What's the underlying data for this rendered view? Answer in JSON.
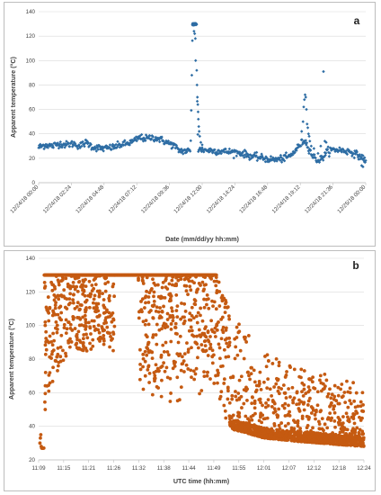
{
  "chart_data": [
    {
      "panel": "a",
      "type": "scatter",
      "color": "#2e6da4",
      "marker": "diamond",
      "xlabel": "Date (mm/dd/yy hh:mm)",
      "ylabel": "Apparent temperature (°C)",
      "ylim": [
        0,
        140
      ],
      "yticks": [
        0,
        20,
        40,
        60,
        80,
        100,
        120,
        140
      ],
      "grid": "horizontal",
      "xlim_hours": [
        0,
        24
      ],
      "xtick_labels": [
        "12/24/18 00:00",
        "12/24/18 02:24",
        "12/24/18 04:48",
        "12/24/18 07:12",
        "12/24/18 09:36",
        "12/24/18 12:00",
        "12/24/18 14:24",
        "12/24/18 16:48",
        "12/24/18 19:12",
        "12/24/18 21:36",
        "12/25/18 00:00"
      ],
      "profile": [
        [
          0,
          29
        ],
        [
          0.5,
          31
        ],
        [
          1,
          30
        ],
        [
          1.5,
          32
        ],
        [
          2,
          31
        ],
        [
          2.6,
          32
        ],
        [
          3,
          30
        ],
        [
          3.5,
          33
        ],
        [
          4,
          29
        ],
        [
          4.8,
          28
        ],
        [
          5.5,
          29
        ],
        [
          6,
          31
        ],
        [
          6.5,
          32
        ],
        [
          7,
          34
        ],
        [
          7.4,
          37
        ],
        [
          7.9,
          36
        ],
        [
          8.3,
          37
        ],
        [
          8.8,
          36
        ],
        [
          9.2,
          34
        ],
        [
          9.6,
          32
        ],
        [
          10,
          30
        ],
        [
          10.2,
          27
        ],
        [
          10.5,
          26
        ],
        [
          10.8,
          26
        ],
        [
          11.0,
          26
        ],
        [
          11.15,
          26
        ],
        [
          11.3,
          130
        ],
        [
          11.55,
          130
        ],
        [
          11.7,
          27
        ],
        [
          12,
          27
        ],
        [
          13,
          26
        ],
        [
          14.4,
          25
        ],
        [
          15,
          24
        ],
        [
          15.5,
          22
        ],
        [
          16,
          21
        ],
        [
          16.5,
          20
        ],
        [
          17,
          19
        ],
        [
          17.5,
          19
        ],
        [
          18,
          20
        ],
        [
          18.5,
          22
        ],
        [
          18.8,
          26
        ],
        [
          19.1,
          30
        ],
        [
          19.5,
          35
        ],
        [
          19.8,
          29
        ],
        [
          20.1,
          22
        ],
        [
          20.5,
          18
        ],
        [
          20.8,
          20
        ],
        [
          21.2,
          26
        ],
        [
          21.6,
          27
        ],
        [
          22,
          27
        ],
        [
          22.5,
          26
        ],
        [
          23,
          25
        ],
        [
          23.5,
          22
        ],
        [
          24,
          19
        ]
      ],
      "spikes": [
        [
          11.4,
          124
        ],
        [
          11.45,
          122
        ],
        [
          11.5,
          118
        ],
        [
          11.52,
          100
        ],
        [
          11.6,
          92
        ],
        [
          11.62,
          80
        ],
        [
          11.65,
          70
        ],
        [
          11.68,
          64
        ],
        [
          11.7,
          58
        ],
        [
          11.72,
          52
        ],
        [
          11.75,
          46
        ],
        [
          11.78,
          42
        ],
        [
          11.82,
          38
        ],
        [
          11.9,
          33
        ],
        [
          12.0,
          31
        ],
        [
          19.3,
          42
        ],
        [
          19.4,
          50
        ],
        [
          19.45,
          62
        ],
        [
          19.5,
          68
        ],
        [
          19.55,
          72
        ],
        [
          19.6,
          70
        ],
        [
          19.65,
          60
        ],
        [
          19.7,
          48
        ],
        [
          19.75,
          45
        ],
        [
          19.8,
          40
        ],
        [
          19.85,
          38
        ],
        [
          19.9,
          34
        ],
        [
          20.0,
          30
        ],
        [
          20.2,
          28
        ],
        [
          20.5,
          24
        ],
        [
          20.7,
          30
        ],
        [
          20.9,
          91
        ],
        [
          21.0,
          34
        ],
        [
          21.1,
          33
        ],
        [
          23.7,
          14
        ],
        [
          23.8,
          13
        ],
        [
          23.9,
          17
        ]
      ]
    },
    {
      "panel": "b",
      "type": "scatter",
      "color": "#c55a11",
      "marker": "circle",
      "xlabel": "UTC time (hh:mm)",
      "ylabel": "Apparent temperature (°C)",
      "ylim": [
        20,
        140
      ],
      "yticks": [
        20,
        40,
        60,
        80,
        100,
        120,
        140
      ],
      "grid": "horizontal",
      "xlim_minutes": [
        0,
        75
      ],
      "xtick_labels": [
        "11:09",
        "11:15",
        "11:21",
        "11:26",
        "11:32",
        "11:38",
        "11:44",
        "11:49",
        "11:55",
        "12:01",
        "12:07",
        "12:12",
        "12:18",
        "12:24"
      ],
      "saturation_value": 130,
      "saturation_minutes": [
        1.3,
        41
      ],
      "early_points": [
        [
          0.3,
          30
        ],
        [
          0.4,
          33
        ],
        [
          0.5,
          35
        ],
        [
          0.6,
          28
        ],
        [
          0.7,
          27
        ],
        [
          0.8,
          27
        ],
        [
          0.9,
          27
        ],
        [
          1.0,
          27
        ],
        [
          1.1,
          27
        ],
        [
          1.2,
          27
        ]
      ],
      "lower_envelope": [
        [
          0,
          28
        ],
        [
          1.3,
          40
        ],
        [
          2,
          55
        ],
        [
          4,
          70
        ],
        [
          6,
          80
        ],
        [
          8,
          85
        ],
        [
          10,
          75
        ],
        [
          12,
          85
        ],
        [
          14,
          90
        ],
        [
          18,
          80
        ],
        [
          20,
          70
        ],
        [
          24,
          60
        ],
        [
          28,
          55
        ],
        [
          32,
          50
        ],
        [
          36,
          60
        ],
        [
          40,
          55
        ],
        [
          42,
          45
        ],
        [
          45,
          38
        ],
        [
          48,
          36
        ],
        [
          52,
          33
        ],
        [
          56,
          32
        ],
        [
          60,
          31
        ],
        [
          65,
          30
        ],
        [
          70,
          29
        ],
        [
          75,
          28
        ]
      ],
      "upper_envelope": [
        [
          0,
          30
        ],
        [
          1.3,
          130
        ],
        [
          41,
          130
        ],
        [
          44,
          110
        ],
        [
          47,
          100
        ],
        [
          50,
          90
        ],
        [
          53,
          85
        ],
        [
          56,
          80
        ],
        [
          60,
          75
        ],
        [
          64,
          70
        ],
        [
          68,
          72
        ],
        [
          72,
          68
        ],
        [
          75,
          62
        ]
      ]
    }
  ]
}
